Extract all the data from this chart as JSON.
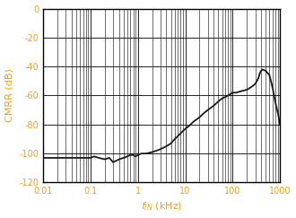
{
  "title": "",
  "xlabel": "$f_{IN}$ (kHz)",
  "ylabel": "CMRR (dB)",
  "xlim": [
    0.01,
    1000
  ],
  "ylim": [
    -120,
    0
  ],
  "yticks": [
    0,
    -20,
    -40,
    -60,
    -80,
    -100,
    -120
  ],
  "ytick_labels": [
    "0",
    "-20",
    "-40",
    "-60",
    "-80",
    "-100",
    "-120"
  ],
  "xticks": [
    0.01,
    0.1,
    1,
    10,
    100,
    1000
  ],
  "xtick_labels": [
    "0.01",
    "0.1",
    "1",
    "10",
    "100",
    "1000"
  ],
  "label_color": "#e8a020",
  "line_color": "#1a1a1a",
  "grid_major_color": "#000000",
  "grid_minor_color": "#000000",
  "bg_color": "#ffffff",
  "curve_x": [
    0.01,
    0.015,
    0.02,
    0.03,
    0.05,
    0.07,
    0.1,
    0.12,
    0.15,
    0.2,
    0.25,
    0.3,
    0.35,
    0.4,
    0.5,
    0.6,
    0.7,
    0.8,
    0.9,
    1.0,
    1.2,
    1.5,
    2.0,
    2.5,
    3.0,
    4.0,
    5.0,
    6.0,
    7.0,
    8.0,
    10.0,
    12.0,
    15.0,
    20.0,
    25.0,
    30.0,
    40.0,
    50.0,
    60.0,
    70.0,
    80.0,
    100.0,
    120.0,
    150.0,
    200.0,
    250.0,
    300.0,
    350.0,
    380.0,
    400.0,
    430.0,
    500.0,
    600.0,
    700.0,
    800.0,
    900.0,
    1000.0
  ],
  "curve_y": [
    -103,
    -103,
    -103,
    -103,
    -103,
    -103,
    -103,
    -102,
    -103,
    -104,
    -103,
    -106,
    -105,
    -104,
    -103,
    -102,
    -101,
    -101,
    -102,
    -101,
    -100,
    -100,
    -99,
    -98,
    -97,
    -95,
    -93,
    -90,
    -88,
    -86,
    -83,
    -81,
    -78,
    -75,
    -72,
    -70,
    -67,
    -64,
    -62,
    -61,
    -60,
    -58,
    -58,
    -57,
    -56,
    -54,
    -52,
    -48,
    -44,
    -43,
    -42,
    -43,
    -46,
    -55,
    -65,
    -72,
    -80
  ],
  "figsize": [
    3.3,
    2.43
  ],
  "dpi": 100
}
